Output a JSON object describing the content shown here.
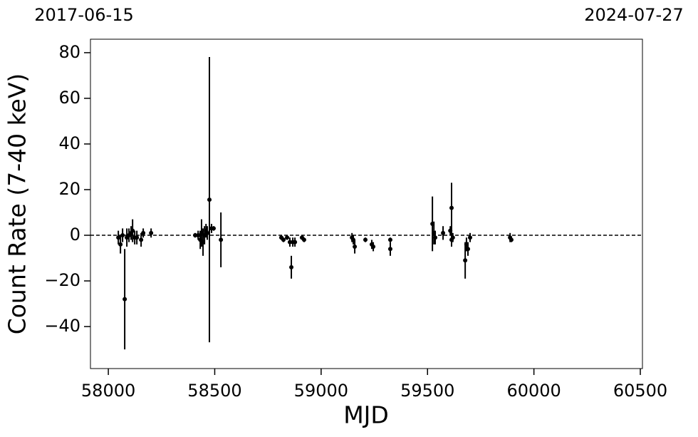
{
  "chart_data": {
    "type": "errorbar",
    "xlabel": "MJD",
    "ylabel": "Count Rate (7-40 keV)",
    "top_annotations": [
      "2017-06-15",
      "2024-07-27"
    ],
    "color": "#000000",
    "hline": 0,
    "xlim": [
      57916,
      60510
    ],
    "ylim": [
      -58.4,
      85.9
    ],
    "xticks": [
      58000,
      58500,
      59000,
      59500,
      60000,
      60500
    ],
    "yticks": [
      {
        "value": -40,
        "label": "−40"
      },
      {
        "value": -20,
        "label": "−20"
      },
      0,
      20,
      40,
      60,
      80
    ],
    "x": [
      58047,
      58057,
      58067,
      58077,
      58087,
      58097,
      58107,
      58114,
      58124,
      58134,
      58154,
      58164,
      58201,
      58408,
      58422,
      58432,
      58438,
      58445,
      58452,
      58459,
      58465,
      58475,
      58485,
      58495,
      58529,
      58813,
      58823,
      58840,
      58853,
      58860,
      58867,
      58877,
      58910,
      58920,
      59145,
      59151,
      59158,
      59208,
      59238,
      59245,
      59325,
      59325,
      59523,
      59530,
      59536,
      59573,
      59607,
      59613,
      59613,
      59619,
      59677,
      59683,
      59690,
      59700,
      59888,
      59894
    ],
    "values": [
      -1,
      -4,
      0,
      -28,
      -1,
      0,
      1,
      2,
      -1,
      -1,
      -2,
      1,
      1,
      0,
      0,
      -2,
      1,
      -3,
      0,
      2,
      1,
      15.6,
      3,
      3,
      -2,
      -1,
      -2,
      -1,
      -3,
      -14,
      -3,
      -3,
      -1,
      -2,
      -1,
      -2,
      -5,
      -2,
      -4,
      -5,
      -2,
      -6,
      5,
      1,
      -1,
      1,
      2,
      12,
      -2,
      -1,
      -11,
      -4,
      -6,
      -1,
      -1,
      -2
    ],
    "errors": [
      3,
      4,
      3,
      22,
      4,
      3,
      3,
      5,
      3,
      3,
      3,
      2,
      2,
      1,
      2,
      4,
      6,
      6,
      4,
      3,
      3,
      62.5,
      2,
      1,
      12,
      1,
      1,
      1,
      2,
      5,
      2,
      2,
      1,
      1,
      2,
      2,
      3,
      1,
      2,
      2,
      1,
      3,
      12,
      5,
      3,
      3,
      2,
      11,
      3,
      2,
      8,
      3,
      3,
      2,
      2,
      1
    ]
  }
}
